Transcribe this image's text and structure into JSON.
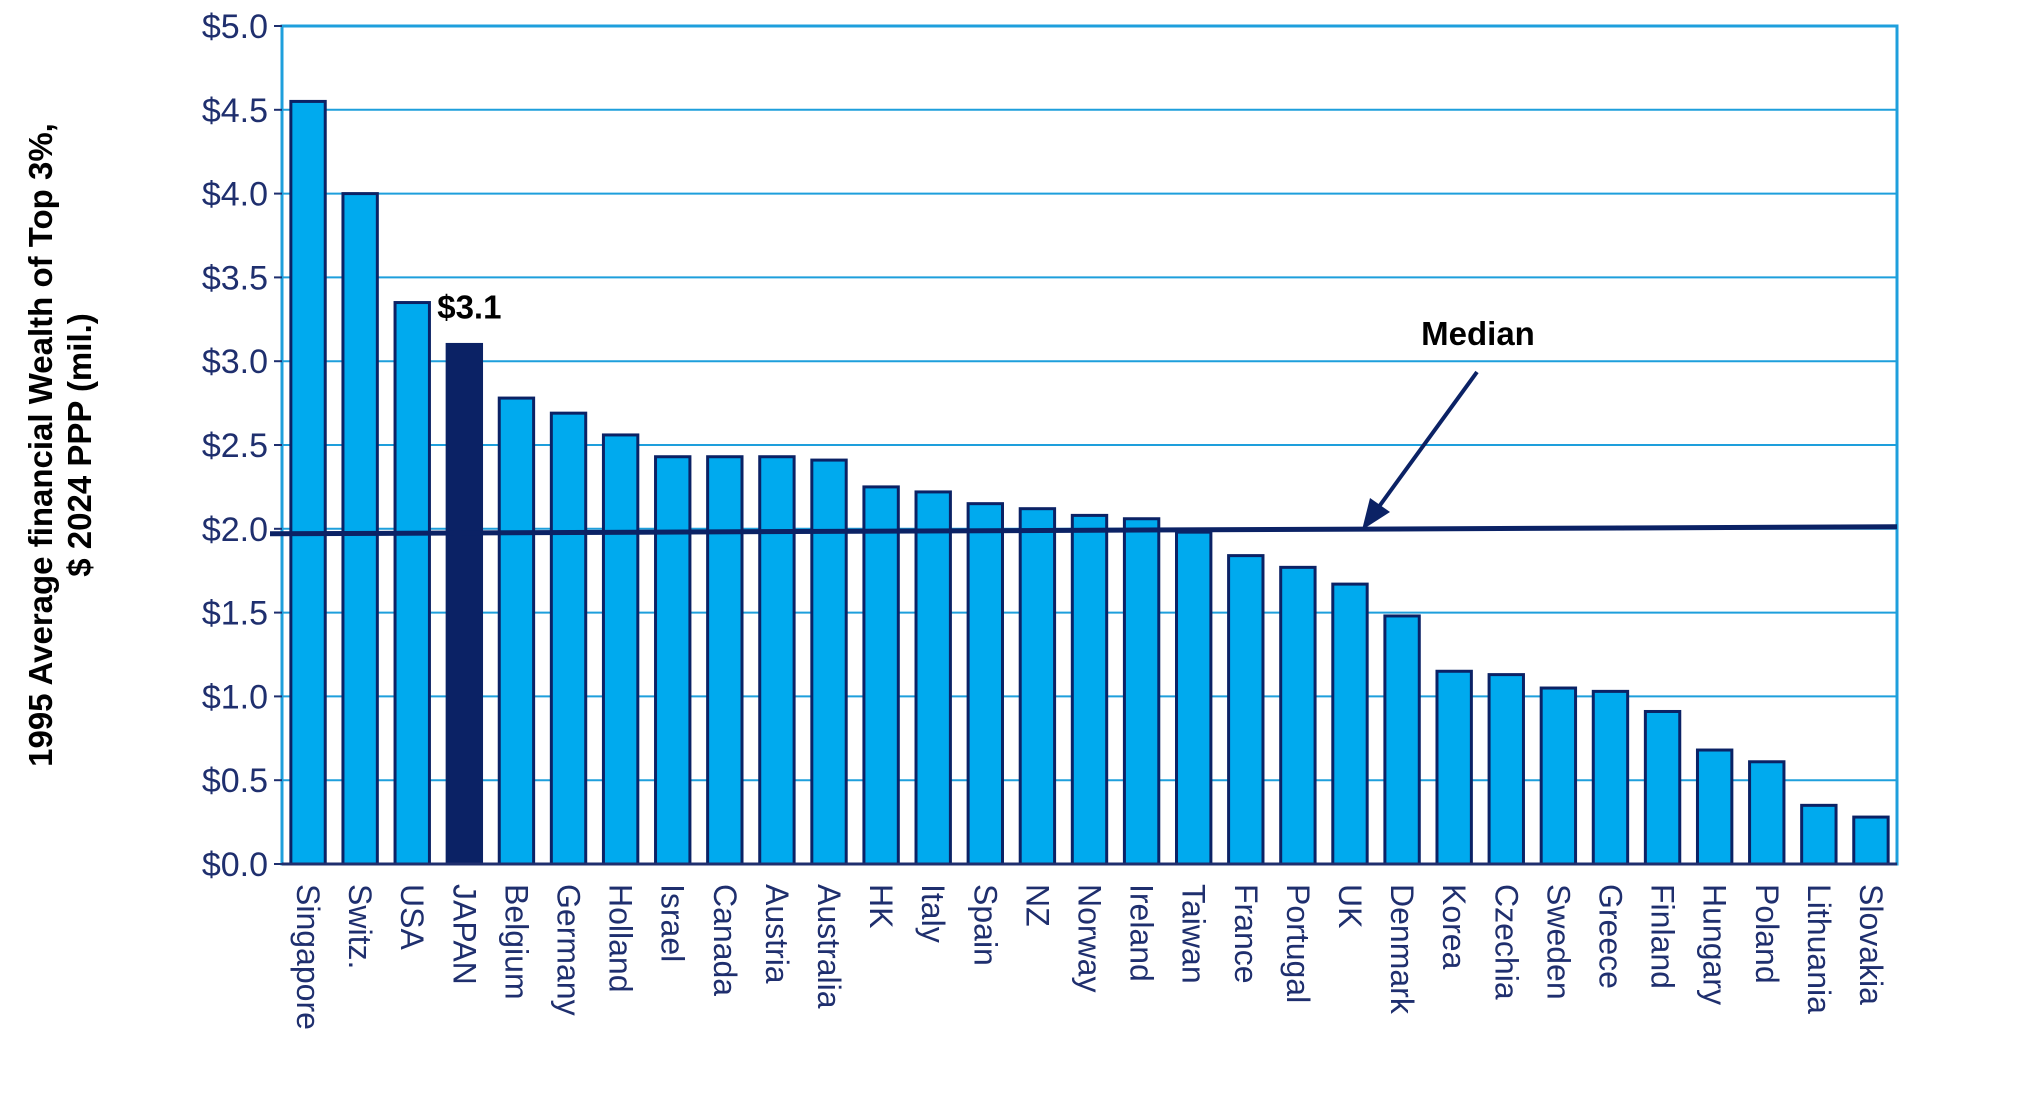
{
  "chart_data": {
    "type": "bar",
    "ylabel_lines": [
      "1995 Average financial Wealth of Top 3%,",
      "$ 2024 PPP (mil.)"
    ],
    "ylim": [
      0,
      5.0
    ],
    "yticks": [
      "$0.0",
      "$0.5",
      "$1.0",
      "$1.5",
      "$2.0",
      "$2.5",
      "$3.0",
      "$3.5",
      "$4.0",
      "$4.5",
      "$5.0"
    ],
    "grid": true,
    "categories": [
      "Singapore",
      "Switz.",
      "USA",
      "JAPAN",
      "Belgium",
      "Germany",
      "Holland",
      "Israel",
      "Canada",
      "Austria",
      "Australia",
      "HK",
      "Italy",
      "Spain",
      "NZ",
      "Norway",
      "Ireland",
      "Taiwan",
      "France",
      "Portugal",
      "UK",
      "Denmark",
      "Korea",
      "Czechia",
      "Sweden",
      "Greece",
      "Finland",
      "Hungary",
      "Poland",
      "Lithuania",
      "Slovakia"
    ],
    "values": [
      4.55,
      4.0,
      3.35,
      3.1,
      2.78,
      2.69,
      2.56,
      2.43,
      2.43,
      2.43,
      2.41,
      2.25,
      2.22,
      2.15,
      2.12,
      2.08,
      2.06,
      1.98,
      1.84,
      1.77,
      1.67,
      1.48,
      1.15,
      1.13,
      1.05,
      1.03,
      0.91,
      0.68,
      0.61,
      0.35,
      0.28
    ],
    "highlight_category": "JAPAN",
    "highlight_label": "$3.1",
    "median": {
      "label": "Median",
      "value": 2.0
    },
    "colors": {
      "bar": "#00aaee",
      "highlight": "#0b2265",
      "edge": "#0b2265",
      "grid": "#1e9fdc",
      "axis": "#1f2f6e"
    }
  }
}
